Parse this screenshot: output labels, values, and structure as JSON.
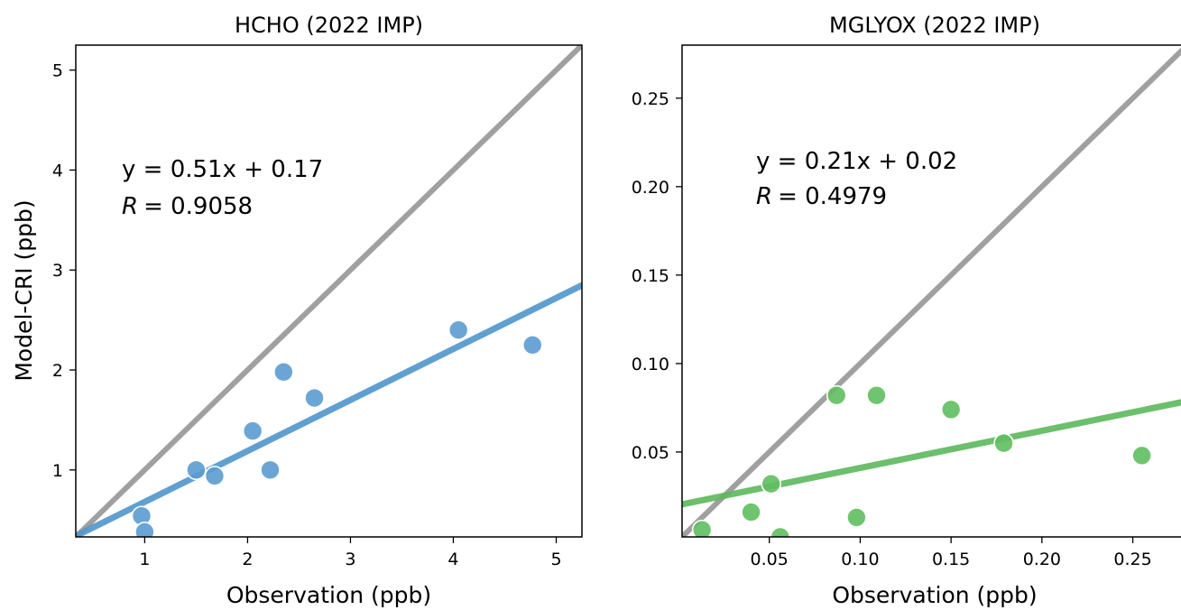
{
  "chart_data": [
    {
      "type": "scatter",
      "title": "HCHO (2022 IMP)",
      "xlabel": "Observation (ppb)",
      "ylabel": "Model-CRI (ppb)",
      "xlim": [
        0.33,
        5.25
      ],
      "ylim": [
        0.33,
        5.25
      ],
      "xticks": [
        1,
        2,
        3,
        4,
        5
      ],
      "yticks": [
        1,
        2,
        3,
        4,
        5
      ],
      "xtick_labels": [
        "1",
        "2",
        "3",
        "4",
        "5"
      ],
      "ytick_labels": [
        "1",
        "2",
        "3",
        "4",
        "5"
      ],
      "grid": false,
      "point_color": "#5b9bd0",
      "fit_color": "#4f96cc",
      "identity_color": "#a0a0a0",
      "x": [
        0.97,
        1.0,
        1.5,
        1.68,
        2.05,
        2.22,
        2.35,
        2.65,
        4.05,
        4.77
      ],
      "y": [
        0.54,
        0.38,
        1.0,
        0.94,
        1.39,
        1.0,
        1.98,
        1.72,
        2.4,
        2.25
      ],
      "fit": {
        "slope": 0.51,
        "intercept": 0.17
      },
      "equation": "y = 0.51x + 0.17",
      "r_label": "R",
      "r_value": "= 0.9058"
    },
    {
      "type": "scatter",
      "title": "MGLYOX (2022 IMP)",
      "xlabel": "Observation (ppb)",
      "ylabel": "",
      "xlim": [
        0.002,
        0.28
      ],
      "ylim": [
        0.002,
        0.28
      ],
      "xticks": [
        0.05,
        0.1,
        0.15,
        0.2,
        0.25
      ],
      "yticks": [
        0.05,
        0.1,
        0.15,
        0.2,
        0.25
      ],
      "xtick_labels": [
        "0.05",
        "0.10",
        "0.15",
        "0.20",
        "0.25"
      ],
      "ytick_labels": [
        "0.05",
        "0.10",
        "0.15",
        "0.20",
        "0.25"
      ],
      "grid": false,
      "point_color": "#5fbf5f",
      "fit_color": "#5cb85c",
      "identity_color": "#a0a0a0",
      "x": [
        0.013,
        0.04,
        0.051,
        0.056,
        0.087,
        0.098,
        0.109,
        0.15,
        0.179,
        0.255
      ],
      "y": [
        0.006,
        0.016,
        0.032,
        0.002,
        0.082,
        0.013,
        0.082,
        0.074,
        0.055,
        0.048
      ],
      "fit": {
        "slope": 0.21,
        "intercept": 0.02
      },
      "equation": "y = 0.21x + 0.02",
      "r_label": "R",
      "r_value": "= 0.4979"
    }
  ]
}
